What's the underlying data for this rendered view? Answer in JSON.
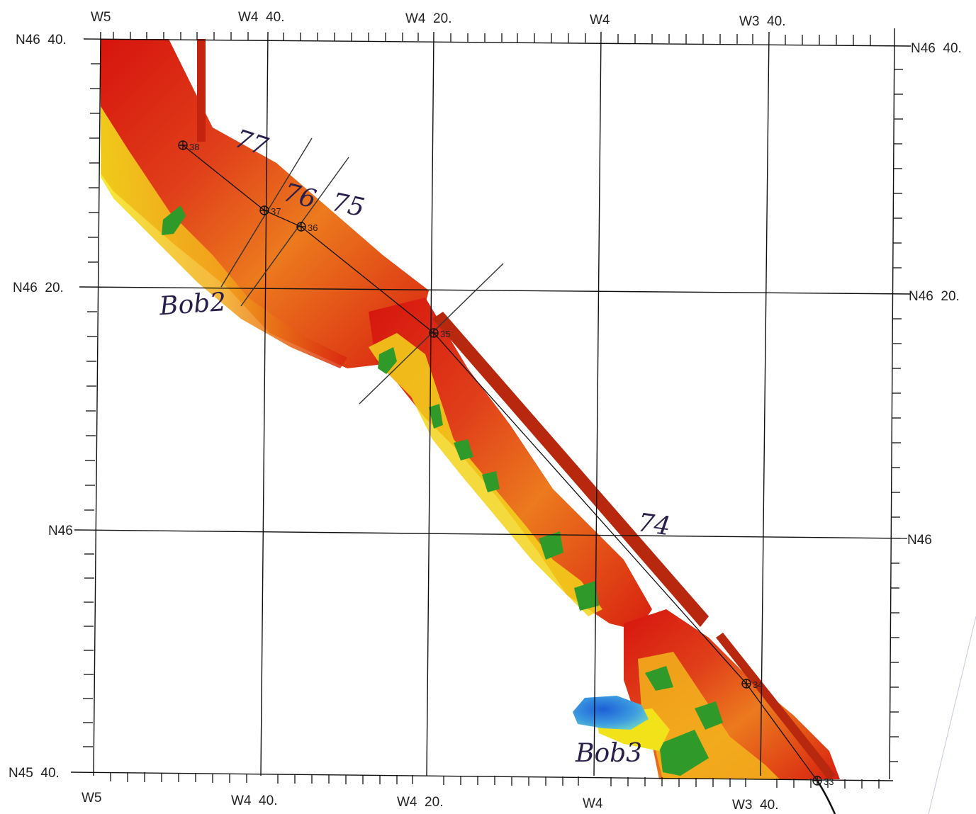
{
  "map": {
    "lon_labels_top": [
      "W5",
      "W4  40.",
      "W4  20.",
      "W4",
      "W3  40."
    ],
    "lon_labels_bottom": [
      "W5",
      "W4  40.",
      "W4  20.",
      "W4",
      "W3  40."
    ],
    "lat_labels_left": [
      "N46  40.",
      "N46  20.",
      "N46",
      "N45  40."
    ],
    "lat_labels_right": [
      "N46  40.",
      "N46  20.",
      "N46"
    ],
    "waypoints": [
      "38",
      "37",
      "36",
      "35",
      "34",
      "33"
    ],
    "annotations": {
      "line_77": "77",
      "line_76": "76",
      "line_75": "75",
      "line_74": "74",
      "site_bob2": "Bob2",
      "site_bob3": "Bob3"
    },
    "depth_colors": {
      "shallow": "#d11a10",
      "mid": "#f08c1a",
      "deeper": "#f2e21a",
      "deepest_green": "#2f9a2a",
      "blue": "#2a6fd6"
    }
  }
}
